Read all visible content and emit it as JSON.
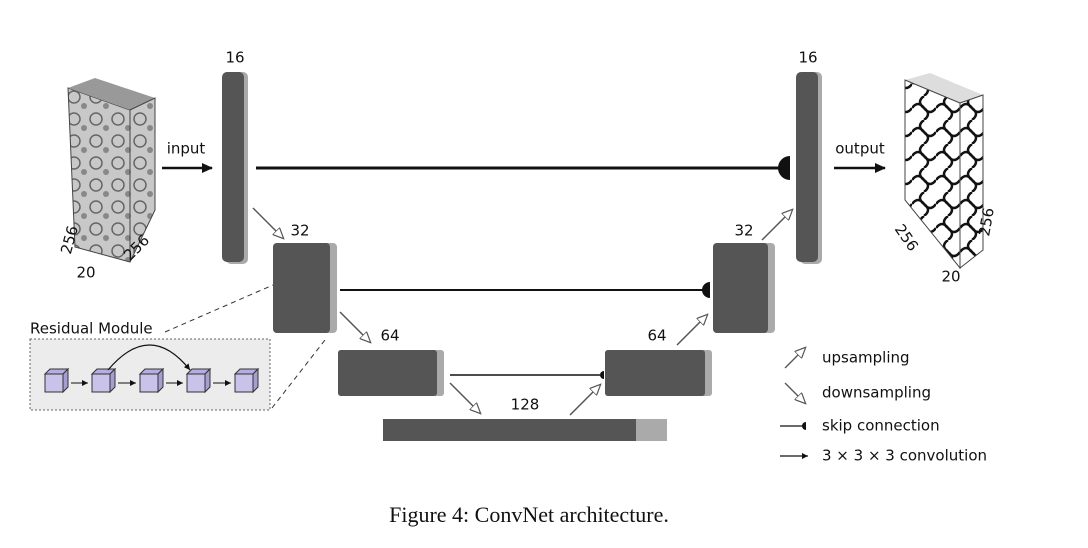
{
  "layers": {
    "left_16": 16,
    "right_16": 16,
    "left_32": 32,
    "right_32": 32,
    "left_64": 64,
    "right_64": 64,
    "bottom_128": 128
  },
  "input": {
    "label": "input",
    "dims": [
      "256",
      "256",
      "20"
    ]
  },
  "output": {
    "label": "output",
    "dims": [
      "256",
      "256",
      "20"
    ]
  },
  "residual_module": {
    "title": "Residual Module"
  },
  "legend": [
    "upsampling",
    "downsampling",
    "skip connection",
    "3 × 3 × 3 convolution"
  ],
  "caption": "Figure 4: ConvNet architecture."
}
